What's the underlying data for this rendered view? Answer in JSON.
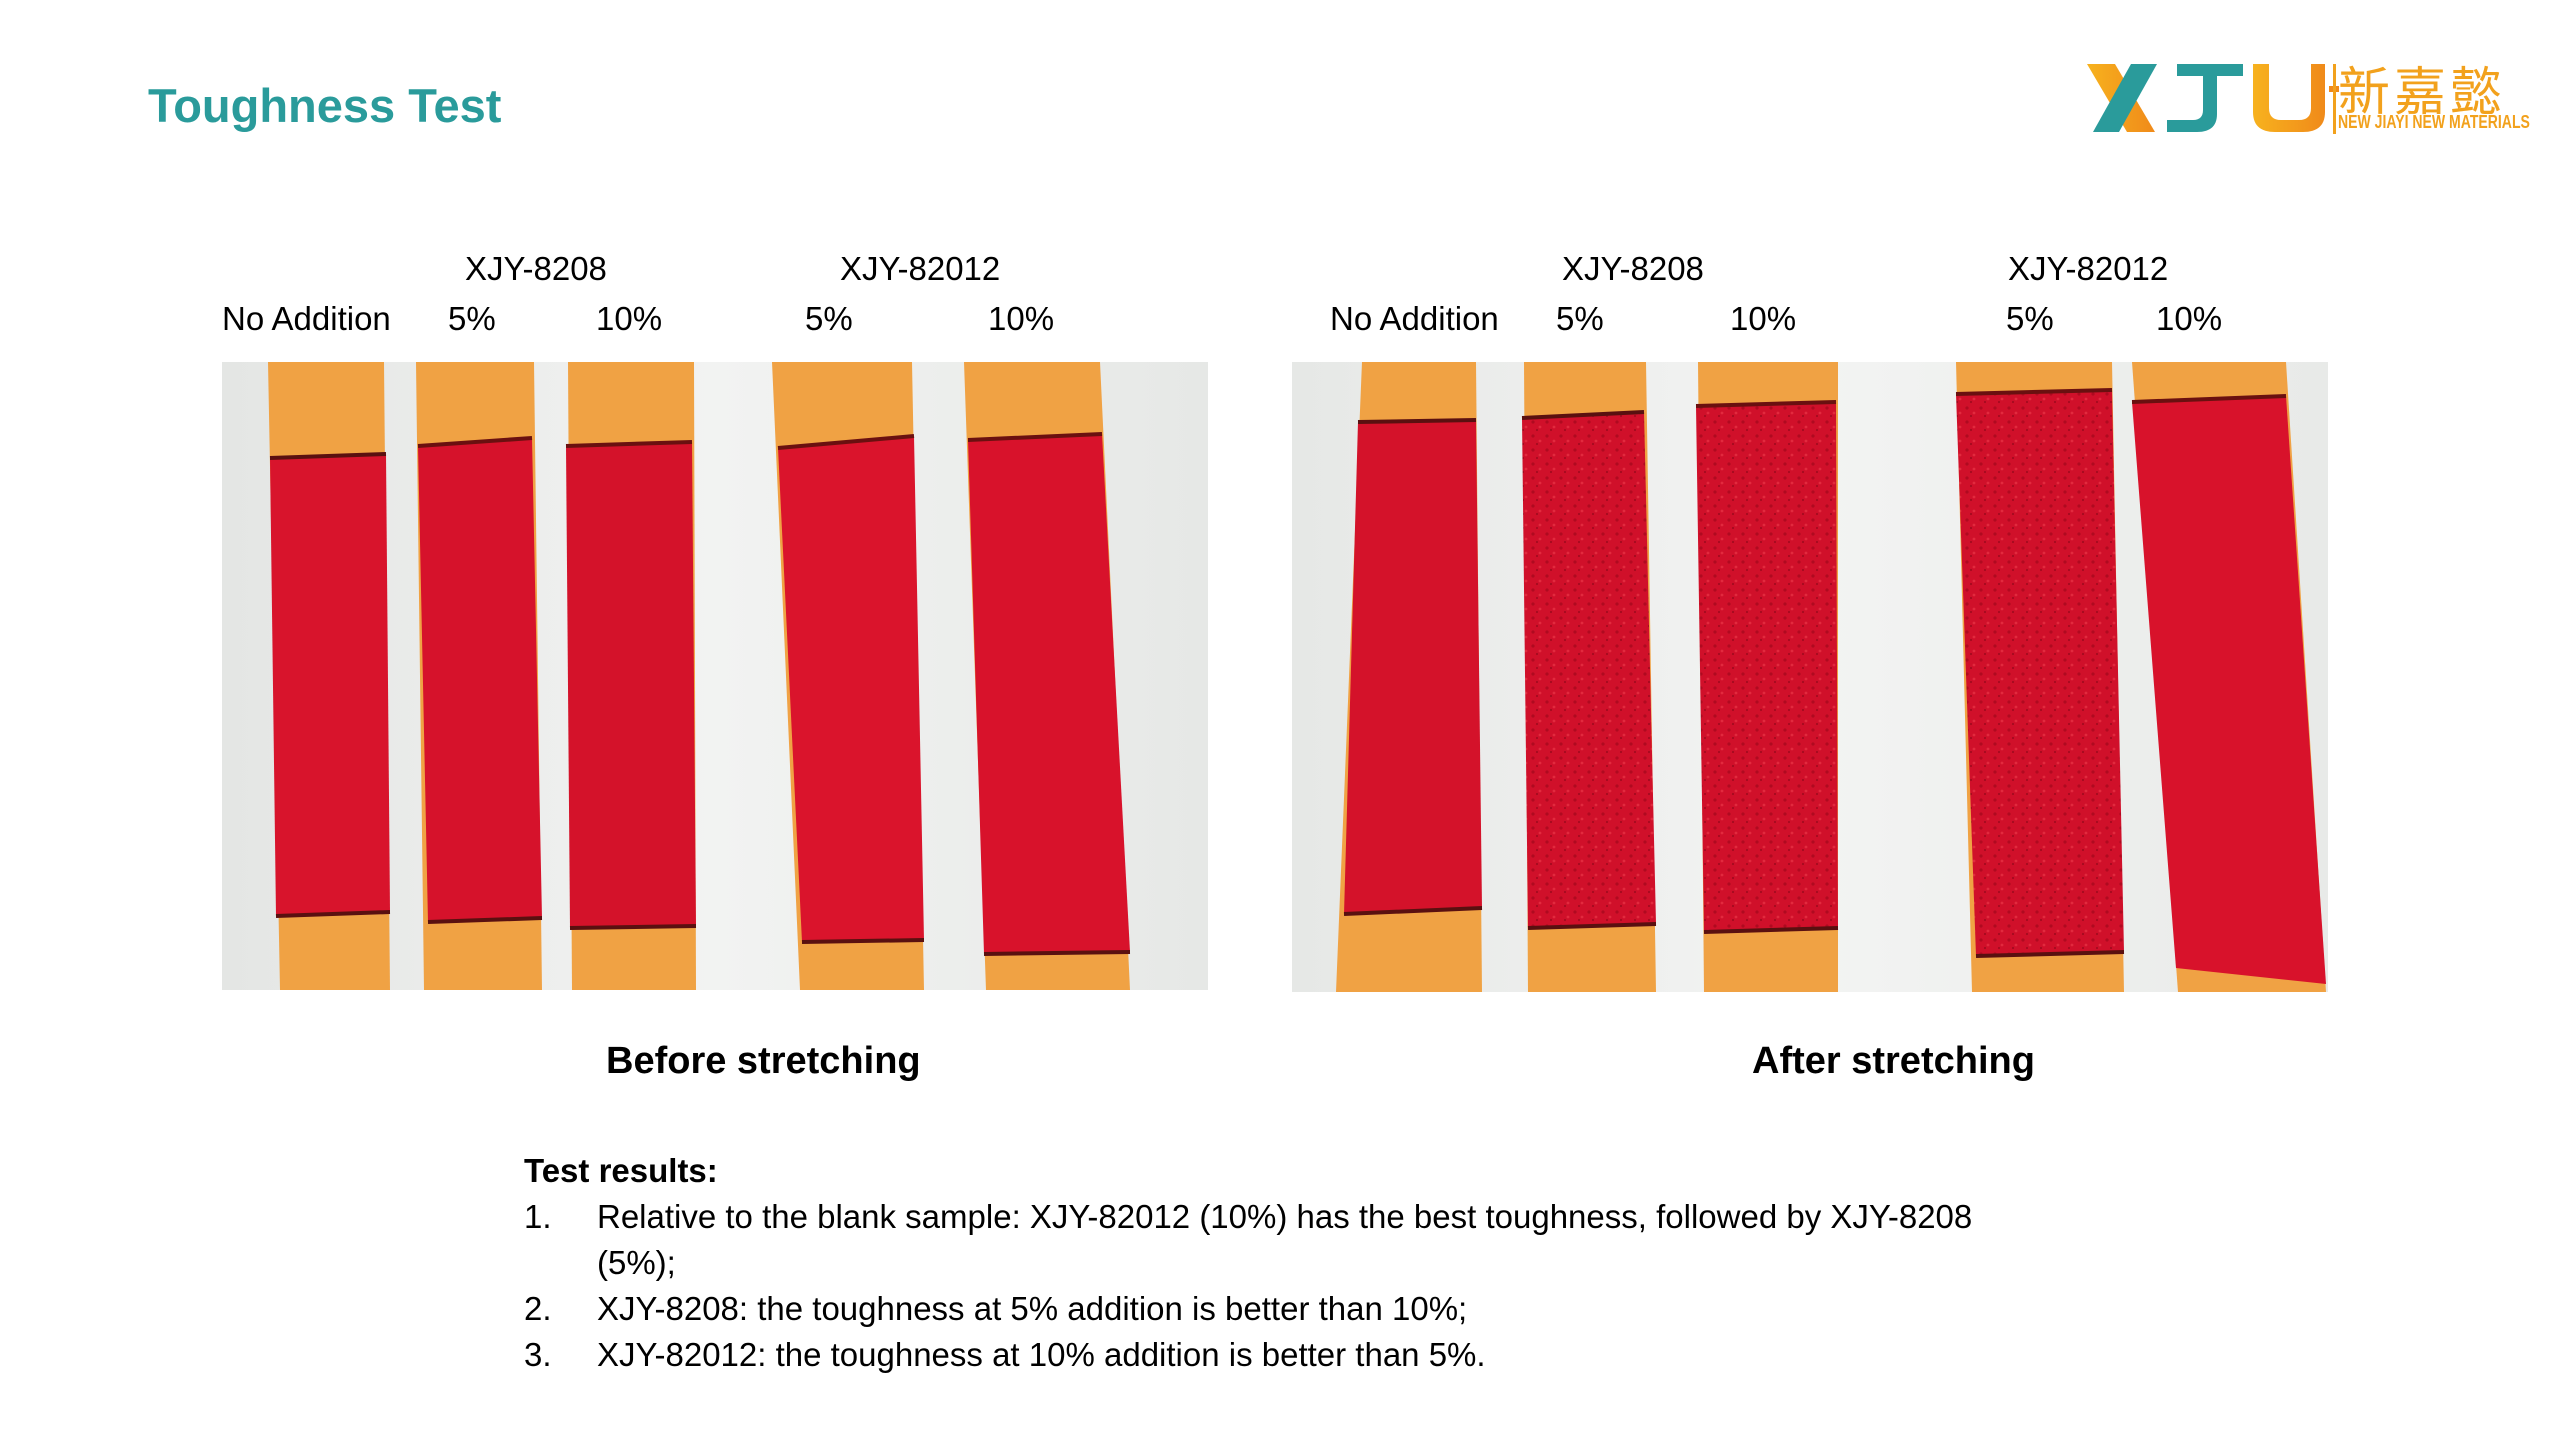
{
  "slide": {
    "title": "Toughness Test",
    "logo": {
      "cn_text": "新嘉懿",
      "en_text": "NEW JIAYI NEW MATERIALS",
      "colors": {
        "orange": "#f2a11c",
        "teal": "#2a9b9b"
      }
    }
  },
  "before": {
    "group1": "XJY-8208",
    "group2": "XJY-82012",
    "labels": [
      "No Addition",
      "5%",
      "10%",
      "5%",
      "10%"
    ],
    "caption": "Before stretching"
  },
  "after": {
    "group1": "XJY-8208",
    "group2": "XJY-82012",
    "labels": [
      "No Addition",
      "5%",
      "10%",
      "5%",
      "10%"
    ],
    "caption": "After stretching"
  },
  "results": {
    "heading": "Test results:",
    "items": [
      {
        "num": "1.",
        "text": "Relative to the blank sample: XJY-82012 (10%) has the best toughness, followed by XJY-8208 (5%);"
      },
      {
        "num": "2.",
        "text": "XJY-8208: the toughness at 5% addition is better than 10%;"
      },
      {
        "num": "3.",
        "text": "XJY-82012: the toughness at 10% addition is better than 5%."
      }
    ]
  },
  "colors": {
    "rubber_orange": "#f0a040",
    "paint_red": "#d8102a",
    "background": "#eef0ee"
  }
}
